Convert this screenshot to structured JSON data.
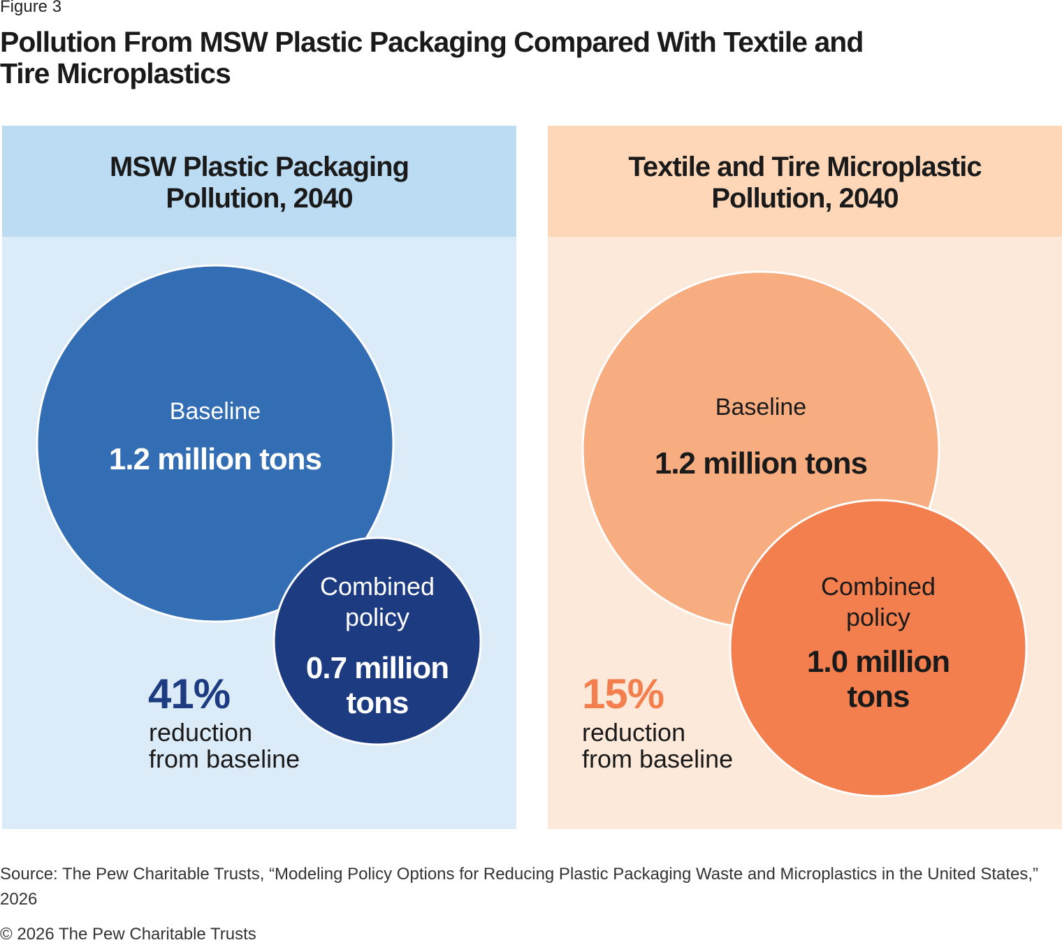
{
  "figure_label": "Figure 3",
  "title": "Pollution From MSW Plastic Packaging Compared With Textile and Tire Microplastics",
  "source": "Source: The Pew Charitable Trusts, “Modeling Policy Options for Reducing Plastic Packaging Waste and Microplastics in the United States,” 2026",
  "copyright": "© 2026 The Pew Charitable Trusts",
  "colors": {
    "left_header": "#bcdcf3",
    "left_bg": "#dcebf8",
    "left_baseline": "#336db3",
    "left_policy": "#1d3b81",
    "right_header": "#fdd7b7",
    "right_bg": "#fde9d9",
    "right_baseline": "#f7ad80",
    "right_policy": "#f47f4e"
  },
  "chart_data": [
    {
      "type": "bubble",
      "title": "MSW Plastic Packaging Pollution, 2040",
      "unit": "million tons",
      "bubbles": [
        {
          "label": "Baseline",
          "value": 1.2,
          "value_label": "1.2 million tons"
        },
        {
          "label": "Combined policy",
          "value": 0.7,
          "value_label": "0.7 million tons"
        }
      ],
      "reduction": {
        "percent": "41%",
        "text": "reduction from baseline"
      }
    },
    {
      "type": "bubble",
      "title": "Textile and Tire Microplastic Pollution, 2040",
      "unit": "million tons",
      "bubbles": [
        {
          "label": "Baseline",
          "value": 1.2,
          "value_label": "1.2 million tons"
        },
        {
          "label": "Combined policy",
          "value": 1.0,
          "value_label": "1.0 million tons"
        }
      ],
      "reduction": {
        "percent": "15%",
        "text": "reduction from baseline"
      }
    }
  ]
}
